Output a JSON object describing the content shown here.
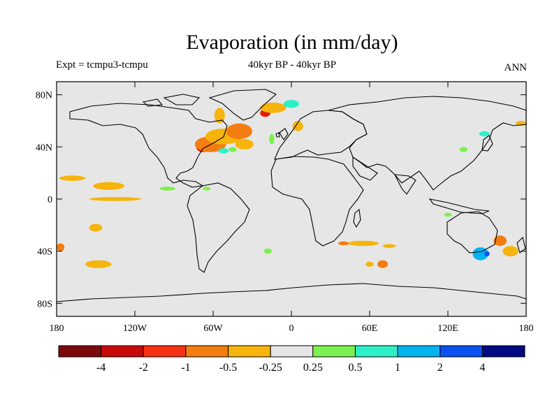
{
  "title": "Evaporation (in mm/day)",
  "subtitle_left": "Expt = tcmpu3-tcmpu",
  "subtitle_center": "40kyr BP - 40kyr BP",
  "subtitle_right": "ANN",
  "map": {
    "projection": "cylindrical equidistant",
    "lon_range": [
      -180,
      180
    ],
    "lat_range": [
      -90,
      90
    ],
    "background_color": "#e6e6e6",
    "coastline_color": "#000000",
    "x_ticks": [
      {
        "value": -180,
        "label": "180"
      },
      {
        "value": -120,
        "label": "120W"
      },
      {
        "value": -60,
        "label": "60W"
      },
      {
        "value": 0,
        "label": "0"
      },
      {
        "value": 60,
        "label": "60E"
      },
      {
        "value": 120,
        "label": "120E"
      },
      {
        "value": 180,
        "label": "180"
      }
    ],
    "y_ticks": [
      {
        "value": 80,
        "label": "80N"
      },
      {
        "value": 40,
        "label": "40N"
      },
      {
        "value": 0,
        "label": "0"
      },
      {
        "value": -40,
        "label": "40S"
      },
      {
        "value": -80,
        "label": "80S"
      }
    ],
    "anomaly_patches": [
      {
        "lon": -68,
        "lat": 40,
        "rx": 5,
        "ry": 4,
        "color": "#e21f0e"
      },
      {
        "lon": -62,
        "lat": 42,
        "rx": 12,
        "ry": 6,
        "color": "#f47d12"
      },
      {
        "lon": -52,
        "lat": 48,
        "rx": 14,
        "ry": 6,
        "color": "#f6b40c"
      },
      {
        "lon": -40,
        "lat": 52,
        "rx": 10,
        "ry": 6,
        "color": "#f47d12"
      },
      {
        "lon": -37,
        "lat": 42,
        "rx": 4,
        "ry": 3,
        "color": "#e21f0e"
      },
      {
        "lon": -36,
        "lat": 42,
        "rx": 7,
        "ry": 4,
        "color": "#f6b40c"
      },
      {
        "lon": -20,
        "lat": 66,
        "rx": 4,
        "ry": 3,
        "color": "#e21f0e"
      },
      {
        "lon": -14,
        "lat": 70,
        "rx": 10,
        "ry": 4,
        "color": "#f6b40c"
      },
      {
        "lon": 0,
        "lat": 73,
        "rx": 6,
        "ry": 3,
        "color": "#2ef0c8"
      },
      {
        "lon": -52,
        "lat": 37,
        "rx": 4,
        "ry": 2,
        "color": "#2ef0c8"
      },
      {
        "lon": -45,
        "lat": 38,
        "rx": 3,
        "ry": 2,
        "color": "#7cf050"
      },
      {
        "lon": -15,
        "lat": 46,
        "rx": 2,
        "ry": 4,
        "color": "#7cf050"
      },
      {
        "lon": 5,
        "lat": 56,
        "rx": 4,
        "ry": 4,
        "color": "#f6b40c"
      },
      {
        "lon": -55,
        "lat": 64,
        "rx": 4,
        "ry": 6,
        "color": "#f6b40c"
      },
      {
        "lon": -168,
        "lat": 16,
        "rx": 10,
        "ry": 2,
        "color": "#f6b40c"
      },
      {
        "lon": -140,
        "lat": 10,
        "rx": 12,
        "ry": 3,
        "color": "#f6b40c"
      },
      {
        "lon": -135,
        "lat": 0,
        "rx": 20,
        "ry": 1.5,
        "color": "#f6b40c"
      },
      {
        "lon": -150,
        "lat": -22,
        "rx": 5,
        "ry": 3,
        "color": "#f6b40c"
      },
      {
        "lon": -148,
        "lat": -50,
        "rx": 10,
        "ry": 3,
        "color": "#f6b40c"
      },
      {
        "lon": -177,
        "lat": -37,
        "rx": 3,
        "ry": 3,
        "color": "#f47d12"
      },
      {
        "lon": -95,
        "lat": 8,
        "rx": 6,
        "ry": 1.5,
        "color": "#7cf050"
      },
      {
        "lon": -65,
        "lat": 8,
        "rx": 3,
        "ry": 1.5,
        "color": "#7cf050"
      },
      {
        "lon": 55,
        "lat": -34,
        "rx": 12,
        "ry": 2,
        "color": "#f6b40c"
      },
      {
        "lon": 40,
        "lat": -34,
        "rx": 4,
        "ry": 1.5,
        "color": "#f47d12"
      },
      {
        "lon": 75,
        "lat": -36,
        "rx": 5,
        "ry": 1.5,
        "color": "#f6b40c"
      },
      {
        "lon": 70,
        "lat": -50,
        "rx": 4,
        "ry": 3,
        "color": "#f47d12"
      },
      {
        "lon": 60,
        "lat": -50,
        "rx": 3,
        "ry": 2,
        "color": "#f6b40c"
      },
      {
        "lon": 145,
        "lat": -42,
        "rx": 6,
        "ry": 5,
        "color": "#00b4f0"
      },
      {
        "lon": 150,
        "lat": -42,
        "rx": 2,
        "ry": 2,
        "color": "#0a50f0"
      },
      {
        "lon": 160,
        "lat": -32,
        "rx": 5,
        "ry": 4,
        "color": "#f47d12"
      },
      {
        "lon": 168,
        "lat": -40,
        "rx": 6,
        "ry": 4,
        "color": "#f6b40c"
      },
      {
        "lon": 176,
        "lat": 58,
        "rx": 4,
        "ry": 2,
        "color": "#f6b40c"
      },
      {
        "lon": 148,
        "lat": 50,
        "rx": 4,
        "ry": 2,
        "color": "#2ef0c8"
      },
      {
        "lon": 132,
        "lat": 38,
        "rx": 3,
        "ry": 2,
        "color": "#7cf050"
      },
      {
        "lon": 120,
        "lat": -12,
        "rx": 3,
        "ry": 1.5,
        "color": "#7cf050"
      },
      {
        "lon": -18,
        "lat": -40,
        "rx": 3,
        "ry": 2,
        "color": "#7cf050"
      }
    ]
  },
  "colorbar": {
    "colors": [
      "#7d0a0a",
      "#c80a0a",
      "#f53214",
      "#f47d12",
      "#f6b40c",
      "#e6e6e6",
      "#7cf050",
      "#2ef0c8",
      "#00b4f0",
      "#0a50f0",
      "#000a82"
    ],
    "labels": [
      "-4",
      "-2",
      "-1",
      "-0.5",
      "-0.25",
      "0.25",
      "0.5",
      "1",
      "2",
      "4"
    ]
  }
}
